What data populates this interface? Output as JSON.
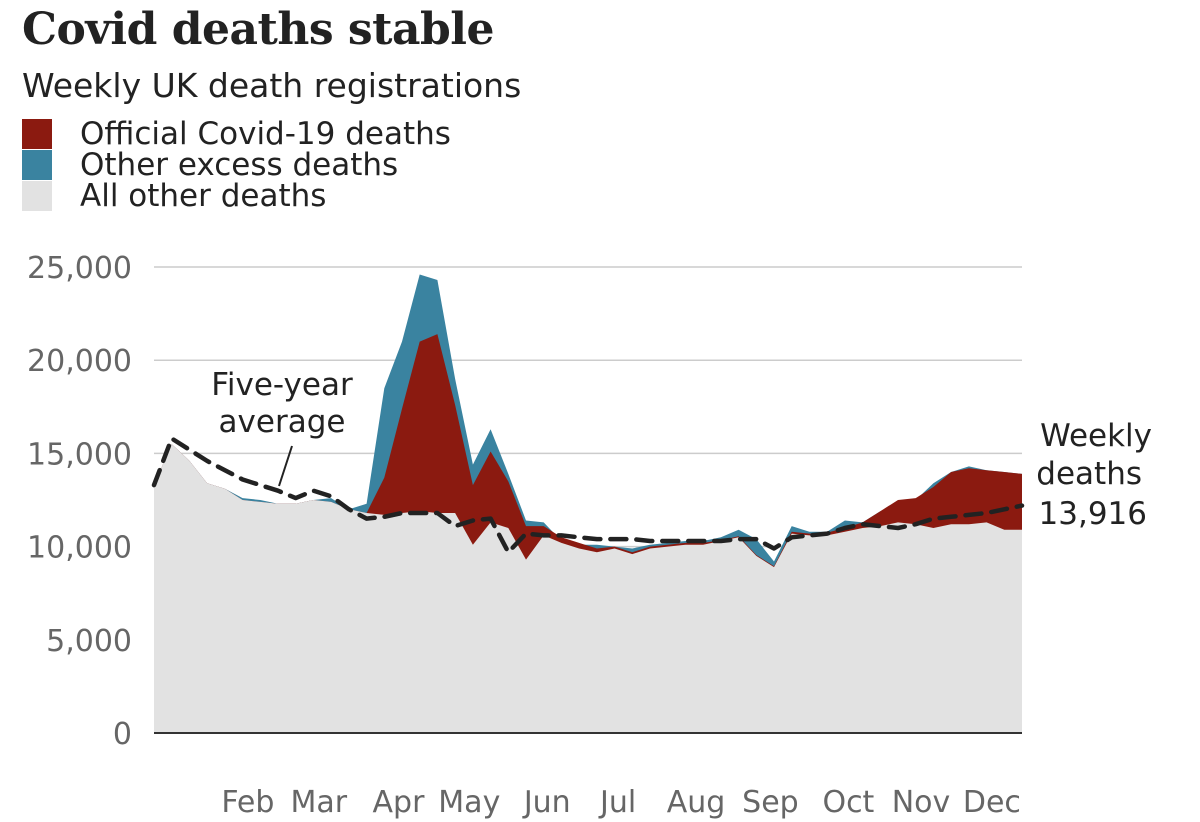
{
  "chart_data": {
    "type": "area",
    "title": "Covid deaths stable",
    "subtitle": "Weekly UK death registrations",
    "series_legend": [
      {
        "name": "Official Covid-19 deaths",
        "color": "#8b1a10"
      },
      {
        "name": "Other excess deaths",
        "color": "#3a83a0"
      },
      {
        "name": "All other deaths",
        "color": "#e2e2e2"
      }
    ],
    "ylim": [
      0,
      25000
    ],
    "yticks": [
      "25,000",
      "20,000",
      "15,000",
      "10,000",
      "5,000",
      "0"
    ],
    "ytick_values": [
      25000,
      20000,
      15000,
      10000,
      5000,
      0
    ],
    "xlim": [
      0,
      49
    ],
    "xticks": [
      {
        "label": "Feb",
        "week": 5.3
      },
      {
        "label": "Mar",
        "week": 9.3
      },
      {
        "label": "Apr",
        "week": 13.8
      },
      {
        "label": "May",
        "week": 17.8
      },
      {
        "label": "Jun",
        "week": 22.2
      },
      {
        "label": "Jul",
        "week": 26.2
      },
      {
        "label": "Aug",
        "week": 30.6
      },
      {
        "label": "Sep",
        "week": 34.8
      },
      {
        "label": "Oct",
        "week": 39.2
      },
      {
        "label": "Nov",
        "week": 43.3
      },
      {
        "label": "Dec",
        "week": 47.3
      }
    ],
    "weeks": [
      0,
      1,
      2,
      3,
      4,
      5,
      6,
      7,
      8,
      9,
      10,
      11,
      12,
      13,
      14,
      15,
      16,
      17,
      18,
      19,
      20,
      21,
      22,
      23,
      24,
      25,
      26,
      27,
      28,
      29,
      30,
      31,
      32,
      33,
      34,
      35,
      36,
      37,
      38,
      39,
      40,
      41,
      42,
      43,
      44,
      45,
      46,
      47,
      48,
      49
    ],
    "total_deaths": [
      13300,
      15500,
      14600,
      13400,
      13100,
      12600,
      12500,
      12300,
      12300,
      12500,
      12600,
      12000,
      12300,
      18500,
      21000,
      24600,
      24300,
      19000,
      14400,
      16300,
      13900,
      11400,
      11300,
      10300,
      10100,
      10100,
      10000,
      9900,
      10100,
      10200,
      10300,
      10300,
      10500,
      10900,
      10400,
      9200,
      11100,
      10800,
      10800,
      11400,
      11300,
      11900,
      12300,
      12500,
      13400,
      14000,
      14300,
      14100,
      14000,
      13900
    ],
    "other_deaths": [
      13300,
      15500,
      14600,
      13400,
      13100,
      12500,
      12400,
      12300,
      12300,
      12500,
      12400,
      12000,
      11800,
      11700,
      11800,
      11900,
      11800,
      11800,
      10100,
      11300,
      11000,
      9300,
      10600,
      10200,
      9900,
      9700,
      9900,
      9600,
      9900,
      10000,
      10100,
      10100,
      10300,
      10500,
      9500,
      8900,
      10700,
      10600,
      10600,
      10800,
      11000,
      11100,
      11300,
      11200,
      11000,
      11200,
      11200,
      11300,
      10900,
      10900
    ],
    "covid_deaths": [
      0,
      0,
      0,
      0,
      0,
      0,
      0,
      0,
      0,
      0,
      0,
      0,
      0,
      2000,
      5600,
      9100,
      9600,
      5800,
      3200,
      3800,
      2500,
      1800,
      500,
      300,
      300,
      200,
      100,
      100,
      100,
      100,
      100,
      100,
      50,
      50,
      50,
      50,
      100,
      100,
      150,
      200,
      300,
      800,
      1200,
      1400,
      2200,
      2800,
      3000,
      2800,
      3100,
      3000
    ],
    "five_year_average": [
      13300,
      15800,
      15200,
      14600,
      14100,
      13600,
      13300,
      13000,
      12600,
      13000,
      12700,
      12000,
      11500,
      11600,
      11800,
      11800,
      11800,
      11100,
      11400,
      11500,
      9700,
      10700,
      10600,
      10600,
      10500,
      10400,
      10400,
      10400,
      10300,
      10300,
      10300,
      10300,
      10300,
      10400,
      10400,
      9900,
      10500,
      10600,
      10700,
      11000,
      11200,
      11100,
      11000,
      11200,
      11500,
      11600,
      11700,
      11800,
      12000,
      12200
    ],
    "annotations": {
      "average_label_line1": "Five-year",
      "average_label_line2": "average",
      "latest_label_line1": "Weekly",
      "latest_label_line2": "deaths",
      "latest_value": "13,916"
    },
    "colors": {
      "covid": "#8b1a10",
      "other_excess": "#3a83a0",
      "all_other": "#e2e2e2",
      "average_line": "#222222",
      "grid": "#cccccc"
    },
    "grid": true
  }
}
